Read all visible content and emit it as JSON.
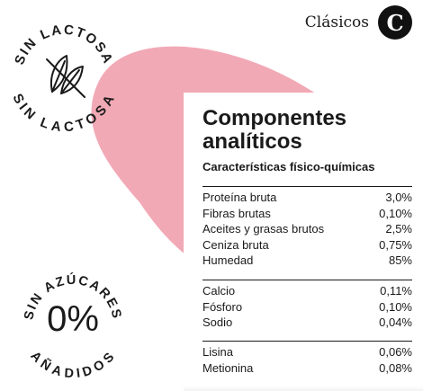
{
  "brand": {
    "label": "Clásicos",
    "badge": "C"
  },
  "stamps": {
    "lactose": {
      "top_text": "SIN LACTOSA",
      "bottom_text": "SIN LACTOSA",
      "icon": "crossed-leaf-icon"
    },
    "sugar": {
      "top_text": "SIN AZÚCARES",
      "center_text": "0%",
      "bottom_text": "AÑADIDOS"
    }
  },
  "card": {
    "title_line1": "Componentes",
    "title_line2": "analíticos",
    "subtitle": "Características físico-químicas",
    "groups": [
      [
        {
          "name": "Proteína bruta",
          "value": "3,0%"
        },
        {
          "name": "Fibras brutas",
          "value": "0,10%"
        },
        {
          "name": "Aceites y grasas brutos",
          "value": "2,5%"
        },
        {
          "name": "Ceniza bruta",
          "value": "0,75%"
        },
        {
          "name": "Humedad",
          "value": "85%"
        }
      ],
      [
        {
          "name": "Calcio",
          "value": "0,11%"
        },
        {
          "name": "Fósforo",
          "value": "0,10%"
        },
        {
          "name": "Sodio",
          "value": "0,04%"
        }
      ],
      [
        {
          "name": "Lisina",
          "value": "0,06%"
        },
        {
          "name": "Metionina",
          "value": "0,08%"
        }
      ]
    ]
  },
  "colors": {
    "accent_pink": "#f2a9b6",
    "ink": "#1a1a1a",
    "badge": "#111111"
  }
}
